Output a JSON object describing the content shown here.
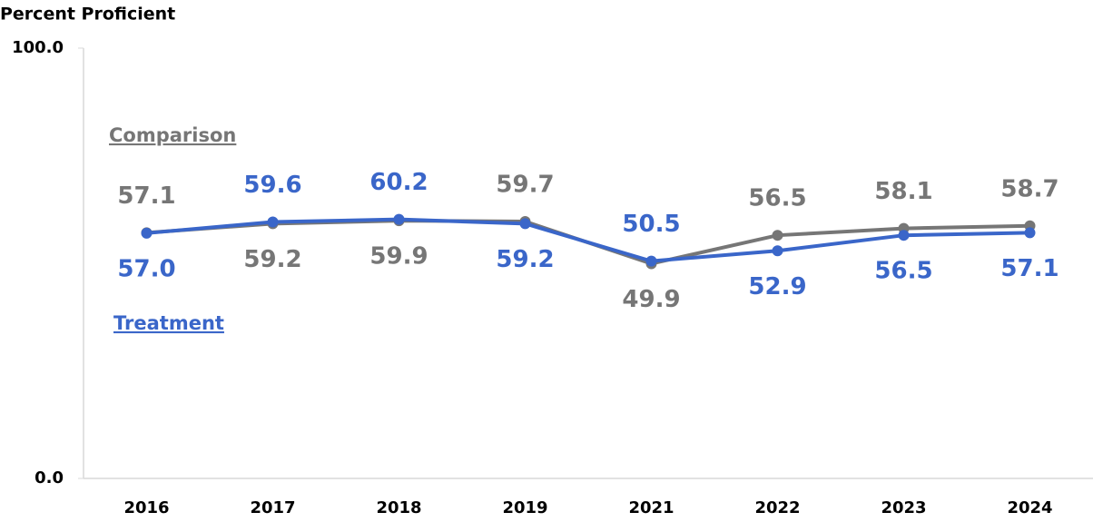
{
  "chart_data": {
    "type": "line",
    "y_axis_label": "Percent Proficient",
    "categories": [
      "2016",
      "2017",
      "2018",
      "2019",
      "2021",
      "2022",
      "2023",
      "2024"
    ],
    "series": [
      {
        "name": "Comparison",
        "color": "#767676",
        "values": [
          57.1,
          59.2,
          59.9,
          59.7,
          49.9,
          56.5,
          58.1,
          58.7
        ],
        "value_labels": [
          "57.1",
          "59.2",
          "59.9",
          "59.7",
          "49.9",
          "56.5",
          "58.1",
          "58.7"
        ]
      },
      {
        "name": "Treatment",
        "color": "#3a66c9",
        "values": [
          57.0,
          59.6,
          60.2,
          59.2,
          50.5,
          52.9,
          56.5,
          57.1
        ],
        "value_labels": [
          "57.0",
          "59.6",
          "60.2",
          "59.2",
          "50.5",
          "52.9",
          "56.5",
          "57.1"
        ]
      }
    ],
    "ylim": [
      0,
      100
    ],
    "yticks": [
      {
        "value": 0,
        "label": "0.0"
      },
      {
        "value": 100,
        "label": "100.0"
      }
    ]
  }
}
